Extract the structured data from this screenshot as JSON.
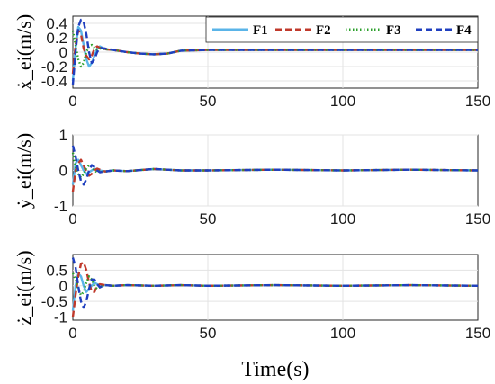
{
  "chart_data": [
    {
      "type": "line",
      "ylabel": "ẋ_ei(m/s)",
      "xlim": [
        0,
        150
      ],
      "ylim": [
        -0.5,
        0.5
      ],
      "xticks": [
        0,
        50,
        100,
        150
      ],
      "yticks": [
        0.4,
        0.2,
        0,
        -0.2,
        -0.4
      ],
      "ytick_labels": [
        "0.4",
        "0.2",
        "0",
        "-0.2",
        "-0.4"
      ],
      "grid": true,
      "legend": "top-right",
      "series": [
        {
          "name": "F1",
          "color": "#5ab4e8",
          "dash": "solid",
          "x": [
            0,
            1,
            2,
            3,
            4,
            5,
            6,
            7,
            8,
            9,
            10,
            12,
            15,
            20,
            25,
            30,
            35,
            40,
            50,
            60,
            75,
            90,
            110,
            130,
            150
          ],
          "y": [
            -0.4,
            0.05,
            0.35,
            0.3,
            0.1,
            -0.1,
            -0.2,
            -0.15,
            -0.05,
            0.05,
            0.08,
            0.04,
            0.03,
            0.0,
            -0.02,
            -0.03,
            -0.02,
            0.02,
            0.03,
            0.03,
            0.03,
            0.03,
            0.03,
            0.03,
            0.03
          ]
        },
        {
          "name": "F2",
          "color": "#c0392b",
          "dash": "dashed",
          "x": [
            0,
            1,
            2,
            3,
            4,
            5,
            6,
            7,
            8,
            9,
            10,
            12,
            15,
            20,
            25,
            30,
            35,
            40,
            50,
            60,
            75,
            90,
            110,
            130,
            150
          ],
          "y": [
            -0.3,
            0.1,
            0.3,
            0.25,
            0.05,
            -0.05,
            -0.1,
            -0.05,
            0.05,
            0.08,
            0.06,
            0.04,
            0.03,
            0.0,
            -0.02,
            -0.03,
            -0.02,
            0.02,
            0.03,
            0.03,
            0.03,
            0.03,
            0.03,
            0.03,
            0.03
          ]
        },
        {
          "name": "F3",
          "color": "#2ca02c",
          "dash": "dotted",
          "x": [
            0,
            1,
            2,
            3,
            4,
            5,
            6,
            7,
            8,
            9,
            10,
            12,
            15,
            20,
            25,
            30,
            35,
            40,
            50,
            60,
            75,
            90,
            110,
            130,
            150
          ],
          "y": [
            0.3,
            0.1,
            -0.1,
            -0.2,
            -0.15,
            0.0,
            0.08,
            0.1,
            0.06,
            0.03,
            0.05,
            0.04,
            0.03,
            0.0,
            -0.02,
            -0.03,
            -0.02,
            0.02,
            0.03,
            0.03,
            0.03,
            0.03,
            0.03,
            0.03,
            0.03
          ]
        },
        {
          "name": "F4",
          "color": "#1f3fbf",
          "dash": "dashed",
          "x": [
            0,
            1,
            2,
            3,
            4,
            5,
            6,
            7,
            8,
            9,
            10,
            12,
            15,
            20,
            25,
            30,
            35,
            40,
            50,
            60,
            75,
            90,
            110,
            130,
            150
          ],
          "y": [
            -0.45,
            0.0,
            0.35,
            0.45,
            0.42,
            0.25,
            0.0,
            -0.15,
            -0.1,
            0.0,
            0.06,
            0.05,
            0.03,
            0.0,
            -0.02,
            -0.03,
            -0.02,
            0.02,
            0.03,
            0.03,
            0.03,
            0.03,
            0.03,
            0.03,
            0.03
          ]
        }
      ]
    },
    {
      "type": "line",
      "ylabel": "ẏ_ei(m/s)",
      "xlim": [
        0,
        150
      ],
      "ylim": [
        -1,
        1
      ],
      "xticks": [
        0,
        50,
        100,
        150
      ],
      "yticks": [
        1,
        0,
        -1
      ],
      "ytick_labels": [
        "1",
        "0",
        "-1"
      ],
      "grid": true,
      "series": [
        {
          "name": "F1",
          "color": "#5ab4e8",
          "dash": "solid",
          "x": [
            0,
            1,
            2,
            3,
            4,
            5,
            6,
            7,
            8,
            9,
            10,
            12,
            15,
            20,
            30,
            40,
            50,
            75,
            100,
            125,
            150
          ],
          "y": [
            -0.4,
            0.2,
            0.3,
            0.15,
            0.0,
            -0.1,
            -0.05,
            0.0,
            0.05,
            0.02,
            0.0,
            -0.03,
            0.0,
            -0.02,
            0.04,
            0.0,
            0.0,
            0.02,
            0.0,
            0.02,
            0.0
          ]
        },
        {
          "name": "F2",
          "color": "#c0392b",
          "dash": "dashed",
          "x": [
            0,
            1,
            2,
            3,
            4,
            5,
            6,
            7,
            8,
            9,
            10,
            12,
            15,
            20,
            30,
            40,
            50,
            75,
            100,
            125,
            150
          ],
          "y": [
            -0.6,
            0.0,
            0.2,
            0.3,
            0.15,
            -0.05,
            -0.15,
            -0.1,
            0.0,
            0.05,
            0.02,
            -0.03,
            0.0,
            -0.02,
            0.04,
            0.0,
            0.0,
            0.02,
            0.0,
            0.02,
            0.0
          ]
        },
        {
          "name": "F3",
          "color": "#2ca02c",
          "dash": "dotted",
          "x": [
            0,
            1,
            2,
            3,
            4,
            5,
            6,
            7,
            8,
            9,
            10,
            12,
            15,
            20,
            30,
            40,
            50,
            75,
            100,
            125,
            150
          ],
          "y": [
            0.5,
            0.1,
            -0.1,
            -0.2,
            -0.1,
            0.05,
            0.15,
            0.1,
            0.0,
            -0.05,
            -0.02,
            -0.03,
            0.0,
            -0.02,
            0.04,
            0.0,
            0.0,
            0.02,
            0.0,
            0.02,
            0.0
          ]
        },
        {
          "name": "F4",
          "color": "#1f3fbf",
          "dash": "dashed",
          "x": [
            0,
            1,
            2,
            3,
            4,
            5,
            6,
            7,
            8,
            9,
            10,
            12,
            15,
            20,
            30,
            40,
            50,
            75,
            100,
            125,
            150
          ],
          "y": [
            0.7,
            0.4,
            0.0,
            -0.3,
            -0.4,
            -0.25,
            0.0,
            0.15,
            0.1,
            0.0,
            -0.05,
            -0.03,
            0.0,
            -0.02,
            0.04,
            0.0,
            0.0,
            0.02,
            0.0,
            0.02,
            0.0
          ]
        }
      ]
    },
    {
      "type": "line",
      "ylabel": "ż_ei(m/s)",
      "xlabel": "Time(s)",
      "xlim": [
        0,
        150
      ],
      "ylim": [
        -1.1,
        1.0
      ],
      "xticks": [
        0,
        50,
        100,
        150
      ],
      "yticks": [
        0.5,
        0,
        -0.5,
        -1
      ],
      "ytick_labels": [
        "0.5",
        "0",
        "-0.5",
        "-1"
      ],
      "grid": true,
      "series": [
        {
          "name": "F1",
          "color": "#5ab4e8",
          "dash": "solid",
          "x": [
            0,
            1,
            2,
            3,
            4,
            5,
            6,
            7,
            8,
            9,
            10,
            12,
            15,
            20,
            30,
            40,
            50,
            75,
            100,
            125,
            150
          ],
          "y": [
            -0.8,
            0.0,
            0.4,
            0.3,
            0.0,
            -0.2,
            -0.1,
            0.0,
            0.1,
            0.05,
            0.0,
            0.02,
            0.0,
            0.02,
            0.0,
            0.02,
            0.0,
            0.02,
            0.0,
            0.02,
            0.0
          ]
        },
        {
          "name": "F2",
          "color": "#c0392b",
          "dash": "dashed",
          "x": [
            0,
            1,
            2,
            3,
            4,
            5,
            6,
            7,
            8,
            9,
            10,
            12,
            15,
            20,
            30,
            40,
            50,
            75,
            100,
            125,
            150
          ],
          "y": [
            -1.0,
            -0.3,
            0.3,
            0.7,
            0.75,
            0.5,
            0.1,
            -0.2,
            -0.2,
            0.0,
            0.05,
            0.02,
            0.0,
            0.02,
            0.0,
            0.02,
            0.0,
            0.02,
            0.0,
            0.02,
            0.0
          ]
        },
        {
          "name": "F3",
          "color": "#2ca02c",
          "dash": "dotted",
          "x": [
            0,
            1,
            2,
            3,
            4,
            5,
            6,
            7,
            8,
            9,
            10,
            12,
            15,
            20,
            30,
            40,
            50,
            75,
            100,
            125,
            150
          ],
          "y": [
            0.4,
            0.2,
            -0.1,
            -0.3,
            -0.2,
            0.1,
            0.3,
            0.2,
            0.0,
            -0.1,
            -0.05,
            0.02,
            0.0,
            0.02,
            0.0,
            0.02,
            0.0,
            0.02,
            0.0,
            0.02,
            0.0
          ]
        },
        {
          "name": "F4",
          "color": "#1f3fbf",
          "dash": "dashed",
          "x": [
            0,
            1,
            2,
            3,
            4,
            5,
            6,
            7,
            8,
            9,
            10,
            12,
            15,
            20,
            30,
            40,
            50,
            75,
            100,
            125,
            150
          ],
          "y": [
            0.9,
            0.6,
            0.0,
            -0.5,
            -0.7,
            -0.5,
            -0.1,
            0.2,
            0.2,
            0.05,
            -0.05,
            0.02,
            0.0,
            0.02,
            0.0,
            0.02,
            0.0,
            0.02,
            0.0,
            0.02,
            0.0
          ]
        }
      ]
    }
  ]
}
